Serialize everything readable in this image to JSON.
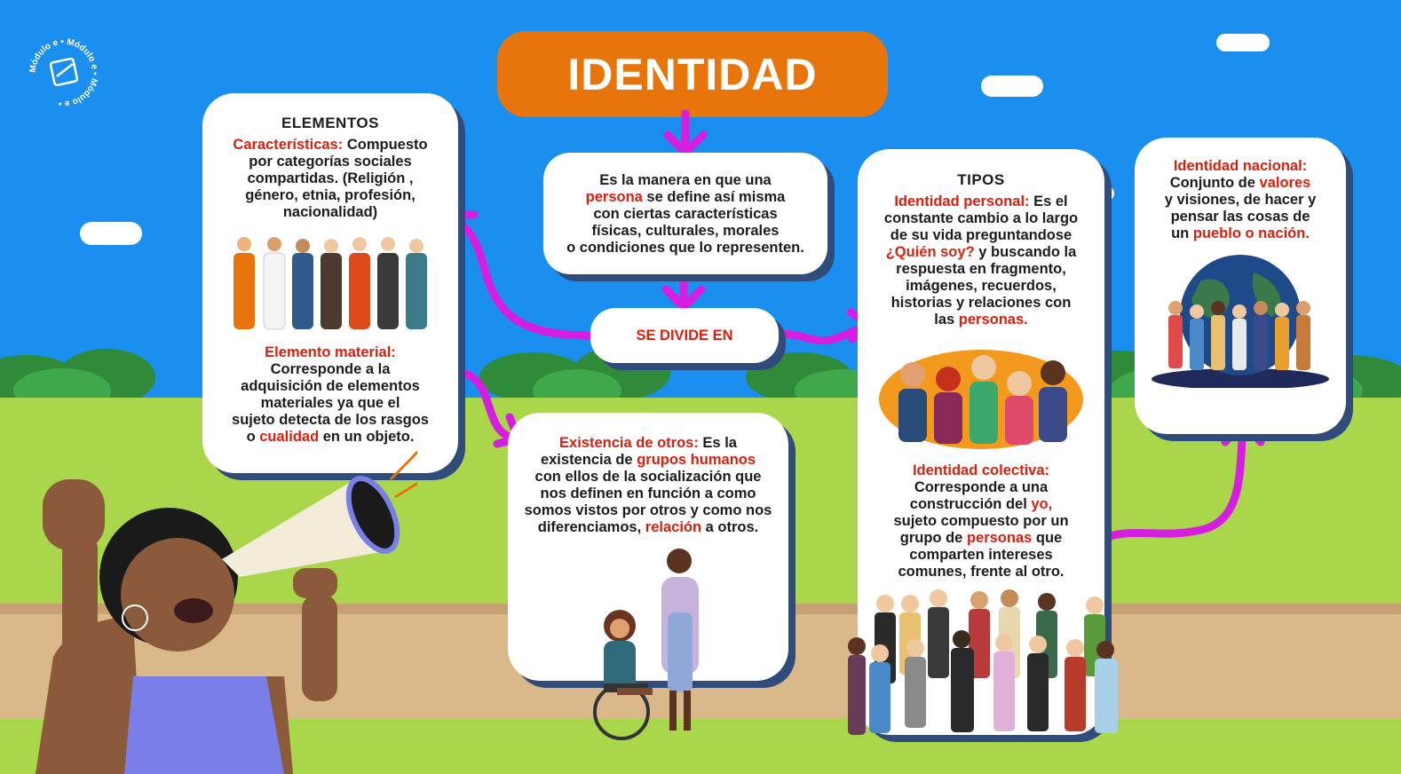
{
  "logo": {
    "ring_text": "Módulo e • Módulo e • Módulo e •"
  },
  "title": "IDENTIDAD",
  "definition": {
    "line1": "Es la manera en que una",
    "red": "persona",
    "line2": " se define así misma",
    "line3": "con ciertas características",
    "line4": "físicas, culturales, morales",
    "line5": "o condiciones que lo representen."
  },
  "divide_label": "SE DIVIDE EN",
  "elementos": {
    "heading": "ELEMENTOS",
    "caracteristicas_label": "Características:",
    "caracteristicas_text1": " Compuesto",
    "caracteristicas_text2": "por categorías sociales",
    "caracteristicas_text3": "compartidas. (Religión ,",
    "caracteristicas_text4": "género, etnia, profesión,",
    "caracteristicas_text5": "nacionalidad)",
    "material_label": "Elemento material:",
    "material_text1": "Corresponde a la",
    "material_text2": "adquisición de elementos",
    "material_text3": "materiales ya que el",
    "material_text4": "sujeto detecta de los rasgos",
    "material_text5a": "o ",
    "material_text5_red": "cualidad",
    "material_text5b": " en un objeto."
  },
  "otros": {
    "label": "Existencia de otros:",
    "t1": " Es la",
    "t2a": "existencia de ",
    "t2_red": "grupos humanos",
    "t3": "con ellos de la socialización que",
    "t4": "nos definen en función a como",
    "t5": "somos vistos por otros y como nos",
    "t6a": "diferenciamos, ",
    "t6_red": "relación",
    "t6b": " a otros."
  },
  "tipos": {
    "heading": "TIPOS",
    "personal_label": "Identidad personal:",
    "p1": " Es el",
    "p2": "constante cambio a lo largo",
    "p3": "de su vida preguntandose",
    "p4_red": "¿Quién soy?",
    "p4b": " y buscando la",
    "p5": "respuesta en fragmento,",
    "p6": "imágenes, recuerdos,",
    "p7": "historias y relaciones con",
    "p8a": "las ",
    "p8_red": "personas.",
    "colectiva_label": "Identidad colectiva:",
    "c1": "Corresponde a una",
    "c2a": "construcción del ",
    "c2_red": "yo,",
    "c3": "sujeto compuesto por un",
    "c4a": "grupo de ",
    "c4_red": "personas",
    "c4b": " que",
    "c5": "comparten intereses",
    "c6": "comunes, frente al otro."
  },
  "nacional": {
    "label": "Identidad nacional:",
    "t1a": "Conjunto de ",
    "t1_red": "valores",
    "t2": "y visiones, de hacer y",
    "t3": "pensar las cosas de",
    "t4a": "un ",
    "t4_red": "pueblo o nación."
  },
  "colors": {
    "sky": "#1a8fef",
    "grass": "#a9d64a",
    "path": "#d9b98a",
    "title_bg": "#e8750b",
    "arrow": "#d61ee0",
    "highlight": "#d8200f",
    "card_shadow": "#2f4c7a"
  }
}
